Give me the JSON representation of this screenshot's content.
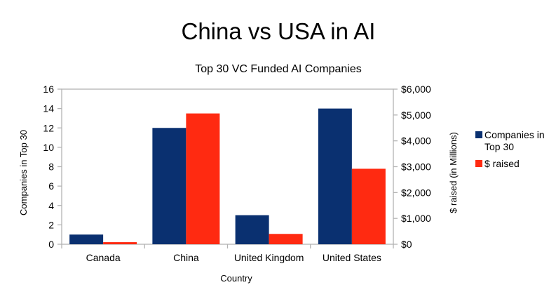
{
  "colors": {
    "companies": "#0a3070",
    "raised": "#ff2a11",
    "axis": "#b3b3b3"
  },
  "chart_data": {
    "type": "bar",
    "title": "China vs USA in AI",
    "subtitle": "Top 30 VC Funded AI Companies",
    "xlabel": "Country",
    "ylabel_left": "Companies in Top 30",
    "ylabel_right": "$ raised (in Millions)",
    "categories": [
      "Canada",
      "China",
      "United Kingdom",
      "United States"
    ],
    "ylim_left": [
      0,
      16
    ],
    "ylim_right": [
      0,
      6000
    ],
    "left_ticks": [
      "0",
      "2",
      "4",
      "6",
      "8",
      "10",
      "12",
      "14",
      "16"
    ],
    "right_ticks": [
      "$0",
      "$1,000",
      "$2,000",
      "$3,000",
      "$4,000",
      "$5,000",
      "$6,000"
    ],
    "grid": false,
    "legend_position": "right",
    "legend": [
      "Companies in Top 30",
      "$ raised"
    ],
    "series": [
      {
        "name": "Companies in Top 30",
        "axis": "left",
        "values": [
          1,
          12,
          3,
          14
        ]
      },
      {
        "name": "$ raised",
        "axis": "right",
        "values": [
          80,
          5060,
          400,
          2920
        ]
      }
    ]
  }
}
